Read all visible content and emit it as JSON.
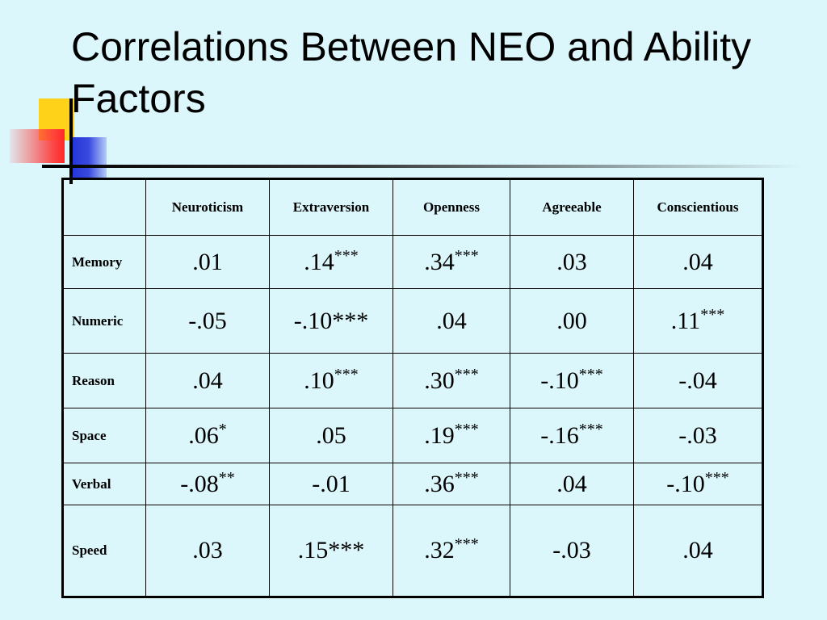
{
  "slide": {
    "title": "Correlations Between NEO and Ability Factors"
  },
  "table": {
    "corner": "",
    "columns": [
      "Neuroticism",
      "Extraversion",
      "Openness",
      "Agreeable",
      "Conscientious"
    ],
    "rows": [
      {
        "label": "Memory",
        "cells": [
          {
            "v": ".01",
            "sup": ""
          },
          {
            "v": ".14",
            "sup": "***"
          },
          {
            "v": ".34",
            "sup": "***"
          },
          {
            "v": ".03",
            "sup": ""
          },
          {
            "v": ".04",
            "sup": ""
          }
        ]
      },
      {
        "label": "Numeric",
        "cells": [
          {
            "v": "-.05",
            "sup": ""
          },
          {
            "v": "-.10***",
            "sup": ""
          },
          {
            "v": ".04",
            "sup": ""
          },
          {
            "v": ".00",
            "sup": ""
          },
          {
            "v": ".11",
            "sup": "***"
          }
        ]
      },
      {
        "label": "Reason",
        "cells": [
          {
            "v": ".04",
            "sup": ""
          },
          {
            "v": ".10",
            "sup": "***"
          },
          {
            "v": ".30",
            "sup": "***"
          },
          {
            "v": "-.10",
            "sup": "***"
          },
          {
            "v": "-.04",
            "sup": ""
          }
        ]
      },
      {
        "label": "Space",
        "cells": [
          {
            "v": ".06",
            "sup": "*"
          },
          {
            "v": ".05",
            "sup": ""
          },
          {
            "v": ".19",
            "sup": "***"
          },
          {
            "v": "-.16",
            "sup": "***"
          },
          {
            "v": "-.03",
            "sup": ""
          }
        ]
      },
      {
        "label": "Verbal",
        "cells": [
          {
            "v": "-.08",
            "sup": "**"
          },
          {
            "v": "-.01",
            "sup": ""
          },
          {
            "v": ".36",
            "sup": "***"
          },
          {
            "v": ".04",
            "sup": ""
          },
          {
            "v": "-.10",
            "sup": "***"
          }
        ]
      },
      {
        "label": "Speed",
        "cells": [
          {
            "v": ".03",
            "sup": ""
          },
          {
            "v": ".15***",
            "sup": ""
          },
          {
            "v": ".32",
            "sup": "***"
          },
          {
            "v": "-.03",
            "sup": ""
          },
          {
            "v": ".04",
            "sup": ""
          }
        ]
      }
    ]
  },
  "colors": {
    "background": "#dcf7fb",
    "deco_yellow": "#ffd21a",
    "deco_red": "#ff3c3c",
    "deco_blue": "#2235d8"
  }
}
